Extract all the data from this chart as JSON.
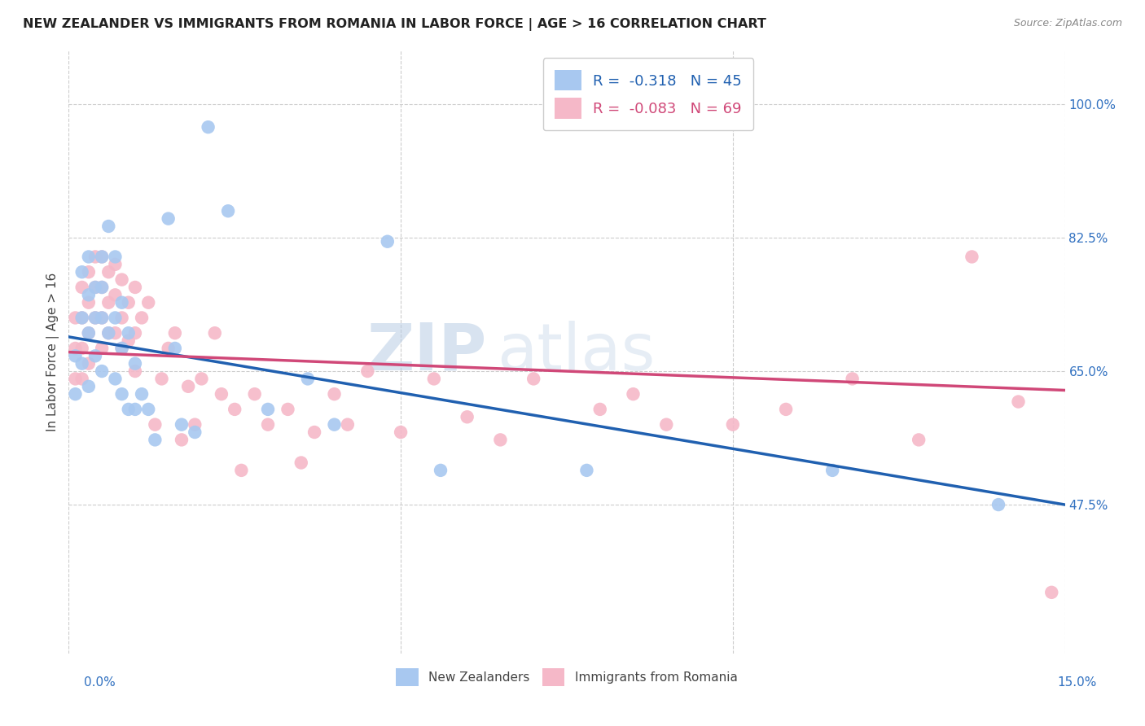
{
  "title": "NEW ZEALANDER VS IMMIGRANTS FROM ROMANIA IN LABOR FORCE | AGE > 16 CORRELATION CHART",
  "source": "Source: ZipAtlas.com",
  "ylabel": "In Labor Force | Age > 16",
  "ytick_labels": [
    "47.5%",
    "65.0%",
    "82.5%",
    "100.0%"
  ],
  "ytick_values": [
    0.475,
    0.65,
    0.825,
    1.0
  ],
  "xmin": 0.0,
  "xmax": 0.15,
  "ymin": 0.28,
  "ymax": 1.07,
  "legend_r1": "R =  -0.318   N = 45",
  "legend_r2": "R =  -0.083   N = 69",
  "color_nz": "#a8c8f0",
  "color_ro": "#f5b8c8",
  "line_color_nz": "#2060b0",
  "line_color_ro": "#d04878",
  "watermark_zip": "ZIP",
  "watermark_atlas": "atlas",
  "nz_x": [
    0.001,
    0.001,
    0.002,
    0.002,
    0.002,
    0.003,
    0.003,
    0.003,
    0.003,
    0.004,
    0.004,
    0.004,
    0.005,
    0.005,
    0.005,
    0.005,
    0.006,
    0.006,
    0.007,
    0.007,
    0.007,
    0.008,
    0.008,
    0.008,
    0.009,
    0.009,
    0.01,
    0.01,
    0.011,
    0.012,
    0.013,
    0.015,
    0.016,
    0.017,
    0.019,
    0.021,
    0.024,
    0.03,
    0.036,
    0.04,
    0.048,
    0.056,
    0.078,
    0.115,
    0.14
  ],
  "nz_y": [
    0.67,
    0.62,
    0.78,
    0.72,
    0.66,
    0.8,
    0.75,
    0.7,
    0.63,
    0.76,
    0.72,
    0.67,
    0.8,
    0.76,
    0.72,
    0.65,
    0.84,
    0.7,
    0.8,
    0.72,
    0.64,
    0.74,
    0.68,
    0.62,
    0.7,
    0.6,
    0.66,
    0.6,
    0.62,
    0.6,
    0.56,
    0.85,
    0.68,
    0.58,
    0.57,
    0.97,
    0.86,
    0.6,
    0.64,
    0.58,
    0.82,
    0.52,
    0.52,
    0.52,
    0.475
  ],
  "ro_x": [
    0.001,
    0.001,
    0.001,
    0.002,
    0.002,
    0.002,
    0.002,
    0.003,
    0.003,
    0.003,
    0.003,
    0.004,
    0.004,
    0.004,
    0.005,
    0.005,
    0.005,
    0.005,
    0.006,
    0.006,
    0.006,
    0.007,
    0.007,
    0.007,
    0.008,
    0.008,
    0.008,
    0.009,
    0.009,
    0.01,
    0.01,
    0.01,
    0.011,
    0.012,
    0.013,
    0.014,
    0.015,
    0.016,
    0.017,
    0.018,
    0.019,
    0.02,
    0.022,
    0.023,
    0.025,
    0.026,
    0.028,
    0.03,
    0.033,
    0.035,
    0.037,
    0.04,
    0.042,
    0.045,
    0.05,
    0.055,
    0.06,
    0.065,
    0.07,
    0.08,
    0.085,
    0.09,
    0.1,
    0.108,
    0.118,
    0.128,
    0.136,
    0.143,
    0.148
  ],
  "ro_y": [
    0.72,
    0.68,
    0.64,
    0.76,
    0.72,
    0.68,
    0.64,
    0.78,
    0.74,
    0.7,
    0.66,
    0.8,
    0.76,
    0.72,
    0.8,
    0.76,
    0.72,
    0.68,
    0.78,
    0.74,
    0.7,
    0.79,
    0.75,
    0.7,
    0.77,
    0.72,
    0.68,
    0.74,
    0.69,
    0.76,
    0.7,
    0.65,
    0.72,
    0.74,
    0.58,
    0.64,
    0.68,
    0.7,
    0.56,
    0.63,
    0.58,
    0.64,
    0.7,
    0.62,
    0.6,
    0.52,
    0.62,
    0.58,
    0.6,
    0.53,
    0.57,
    0.62,
    0.58,
    0.65,
    0.57,
    0.64,
    0.59,
    0.56,
    0.64,
    0.6,
    0.62,
    0.58,
    0.58,
    0.6,
    0.64,
    0.56,
    0.8,
    0.61,
    0.36
  ],
  "nz_line_x0": 0.0,
  "nz_line_x1": 0.15,
  "nz_line_y0": 0.695,
  "nz_line_y1": 0.475,
  "ro_line_x0": 0.0,
  "ro_line_x1": 0.15,
  "ro_line_y0": 0.675,
  "ro_line_y1": 0.625
}
